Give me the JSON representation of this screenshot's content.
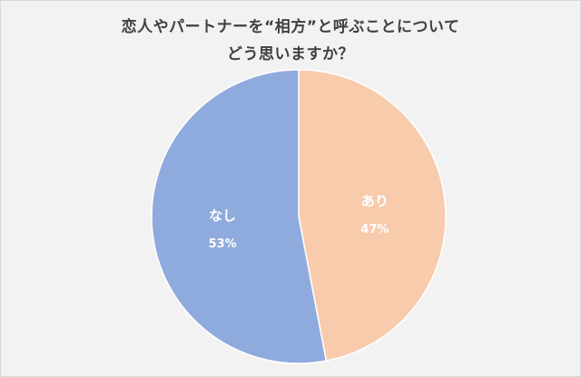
{
  "chart_data": {
    "type": "pie",
    "title_lines": [
      "恋人やパートナーを“相方”と呼ぶことについて",
      "どう思いますか？"
    ],
    "slices": [
      {
        "label": "あり",
        "value": 47,
        "value_label": "47%",
        "color": "#f8cbad"
      },
      {
        "label": "なし",
        "value": 53,
        "value_label": "53%",
        "color": "#8faadc"
      }
    ],
    "start_angle_deg": 0,
    "direction": "clockwise",
    "legend": "none"
  }
}
